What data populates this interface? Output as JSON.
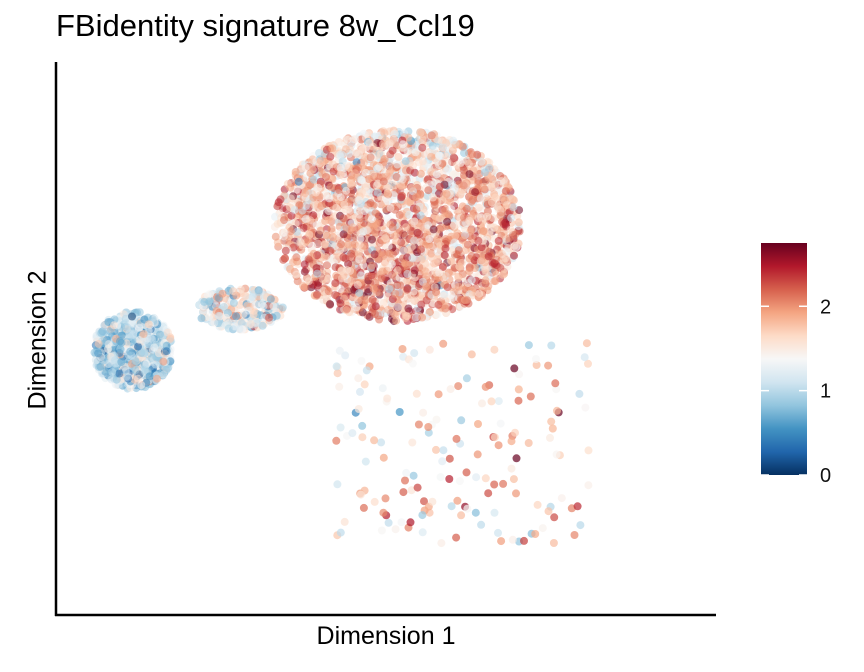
{
  "chart_data": {
    "type": "scatter",
    "title": "FBidentity signature 8w_Ccl19",
    "xlabel": "Dimension 1",
    "ylabel": "Dimension 2",
    "x_ticks_shown": false,
    "y_ticks_shown": false,
    "grid": false,
    "colorbar": {
      "position": "right",
      "range": [
        0,
        2.75
      ],
      "ticks": [
        "0",
        "1",
        "2"
      ],
      "palette": [
        "#053061",
        "#2166ac",
        "#4393c3",
        "#92c5de",
        "#d1e5f0",
        "#f7f7f7",
        "#fddbc7",
        "#f4a582",
        "#d6604d",
        "#b2182b",
        "#67001f"
      ]
    },
    "clusters": [
      {
        "label": "main cluster (upper centre)",
        "center": [
          0.52,
          0.72
        ],
        "spread": [
          0.17,
          0.16
        ],
        "points": 2600,
        "mean_value": 1.85,
        "value_sd": 0.42
      },
      {
        "label": "left cluster",
        "center": [
          0.1,
          0.48
        ],
        "spread": [
          0.055,
          0.065
        ],
        "points": 700,
        "mean_value": 1.05,
        "value_sd": 0.38
      },
      {
        "label": "bridge",
        "center": [
          0.27,
          0.56
        ],
        "spread": [
          0.06,
          0.035
        ],
        "points": 260,
        "mean_value": 1.35,
        "value_sd": 0.4
      },
      {
        "label": "sparse cells (lower right)",
        "center": [
          0.62,
          0.3
        ],
        "spread": [
          0.17,
          0.15
        ],
        "points": 170,
        "mean_value": 1.7,
        "value_sd": 0.45
      }
    ]
  }
}
